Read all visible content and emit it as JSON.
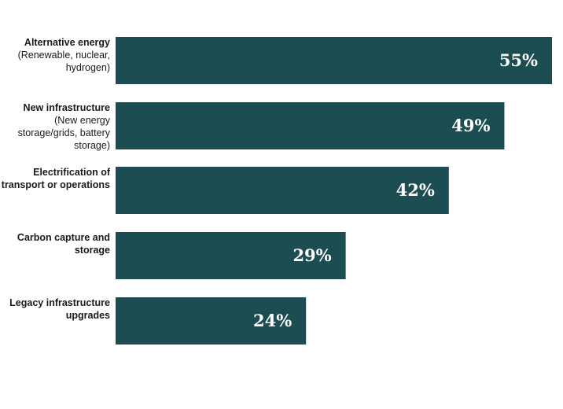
{
  "chart_data": {
    "type": "bar",
    "orientation": "horizontal",
    "categories": [
      {
        "title": [
          "Alternative energy"
        ],
        "subtitle": [
          "(Renewable, nuclear,",
          "hydrogen)"
        ]
      },
      {
        "title": [
          "New infrastructure"
        ],
        "subtitle": [
          "(New energy",
          "storage/grids, battery",
          "storage)"
        ]
      },
      {
        "title": [
          "Electrification of",
          "transport or operations"
        ],
        "subtitle": []
      },
      {
        "title": [
          "Carbon capture and",
          "storage"
        ],
        "subtitle": []
      },
      {
        "title": [
          "Legacy infrastructure",
          "upgrades"
        ],
        "subtitle": []
      }
    ],
    "values": [
      55,
      49,
      42,
      29,
      24
    ],
    "value_labels": [
      "55%",
      "49%",
      "42%",
      "29%",
      "24%"
    ],
    "unit": "%",
    "xlim": [
      0,
      55
    ],
    "grid": false,
    "bar_color": "#1b4d52",
    "label_color": "#ffffff"
  }
}
